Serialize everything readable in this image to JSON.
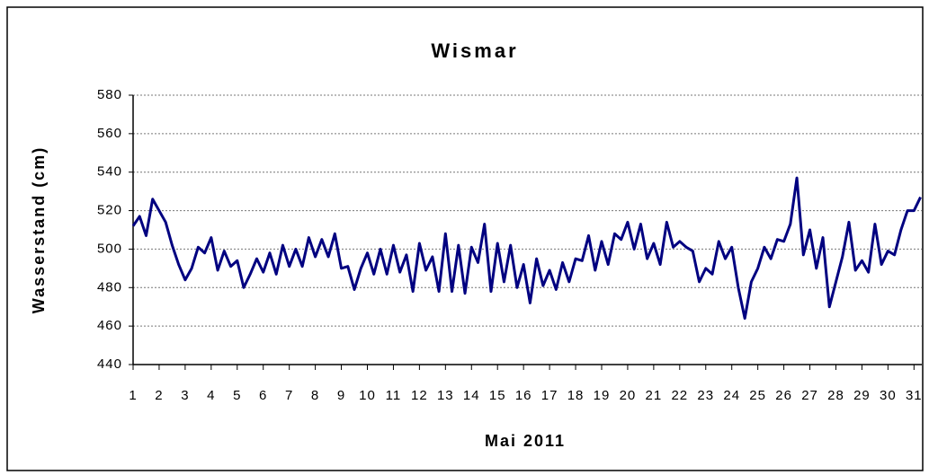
{
  "chart_data": {
    "type": "line",
    "title": "Wismar",
    "xlabel": "Mai 2011",
    "ylabel": "Wasserstand (cm)",
    "x": [
      1,
      1.25,
      1.5,
      1.75,
      2,
      2.25,
      2.5,
      2.75,
      3,
      3.25,
      3.5,
      3.75,
      4,
      4.25,
      4.5,
      4.75,
      5,
      5.25,
      5.5,
      5.75,
      6,
      6.25,
      6.5,
      6.75,
      7,
      7.25,
      7.5,
      7.75,
      8,
      8.25,
      8.5,
      8.75,
      9,
      9.25,
      9.5,
      9.75,
      10,
      10.25,
      10.5,
      10.75,
      11,
      11.25,
      11.5,
      11.75,
      12,
      12.25,
      12.5,
      12.75,
      13,
      13.25,
      13.5,
      13.75,
      14,
      14.25,
      14.5,
      14.75,
      15,
      15.25,
      15.5,
      15.75,
      16,
      16.25,
      16.5,
      16.75,
      17,
      17.25,
      17.5,
      17.75,
      18,
      18.25,
      18.5,
      18.75,
      19,
      19.25,
      19.5,
      19.75,
      20,
      20.25,
      20.5,
      20.75,
      21,
      21.25,
      21.5,
      21.75,
      22,
      22.25,
      22.5,
      22.75,
      23,
      23.25,
      23.5,
      23.75,
      24,
      24.25,
      24.5,
      24.75,
      25,
      25.25,
      25.5,
      25.75,
      26,
      26.25,
      26.5,
      26.75,
      27,
      27.25,
      27.5,
      27.75,
      28,
      28.25,
      28.5,
      28.75,
      29,
      29.25,
      29.5,
      29.75,
      30,
      30.25,
      30.5,
      30.75,
      31,
      31.25
    ],
    "series": [
      {
        "name": "Wismar",
        "color": "#000080",
        "values": [
          512,
          517,
          507,
          526,
          520,
          514,
          502,
          492,
          484,
          490,
          501,
          498,
          506,
          489,
          499,
          491,
          494,
          480,
          487,
          495,
          488,
          498,
          487,
          502,
          491,
          500,
          491,
          506,
          496,
          505,
          496,
          508,
          490,
          491,
          479,
          490,
          498,
          487,
          500,
          487,
          502,
          488,
          497,
          478,
          503,
          489,
          496,
          478,
          508,
          478,
          502,
          477,
          501,
          493,
          513,
          478,
          503,
          483,
          502,
          480,
          492,
          472,
          495,
          481,
          489,
          479,
          493,
          483,
          495,
          494,
          507,
          489,
          504,
          492,
          508,
          505,
          514,
          500,
          513,
          495,
          503,
          492,
          514,
          501,
          504,
          501,
          499,
          483,
          490,
          487,
          504,
          495,
          501,
          480,
          464,
          483,
          490,
          501,
          495,
          505,
          504,
          513,
          537,
          497,
          510,
          490,
          506,
          470,
          483,
          496,
          514,
          489,
          494,
          488,
          513,
          492,
          499,
          497,
          510,
          520,
          520,
          527
        ]
      }
    ],
    "xlim": [
      1,
      31.3
    ],
    "xticks": [
      1,
      2,
      3,
      4,
      5,
      6,
      7,
      8,
      9,
      10,
      11,
      12,
      13,
      14,
      15,
      16,
      17,
      18,
      19,
      20,
      21,
      22,
      23,
      24,
      25,
      26,
      27,
      28,
      29,
      30,
      31
    ],
    "ylim": [
      440,
      580
    ],
    "yticks": [
      440,
      460,
      480,
      500,
      520,
      540,
      560,
      580
    ],
    "grid": true
  }
}
